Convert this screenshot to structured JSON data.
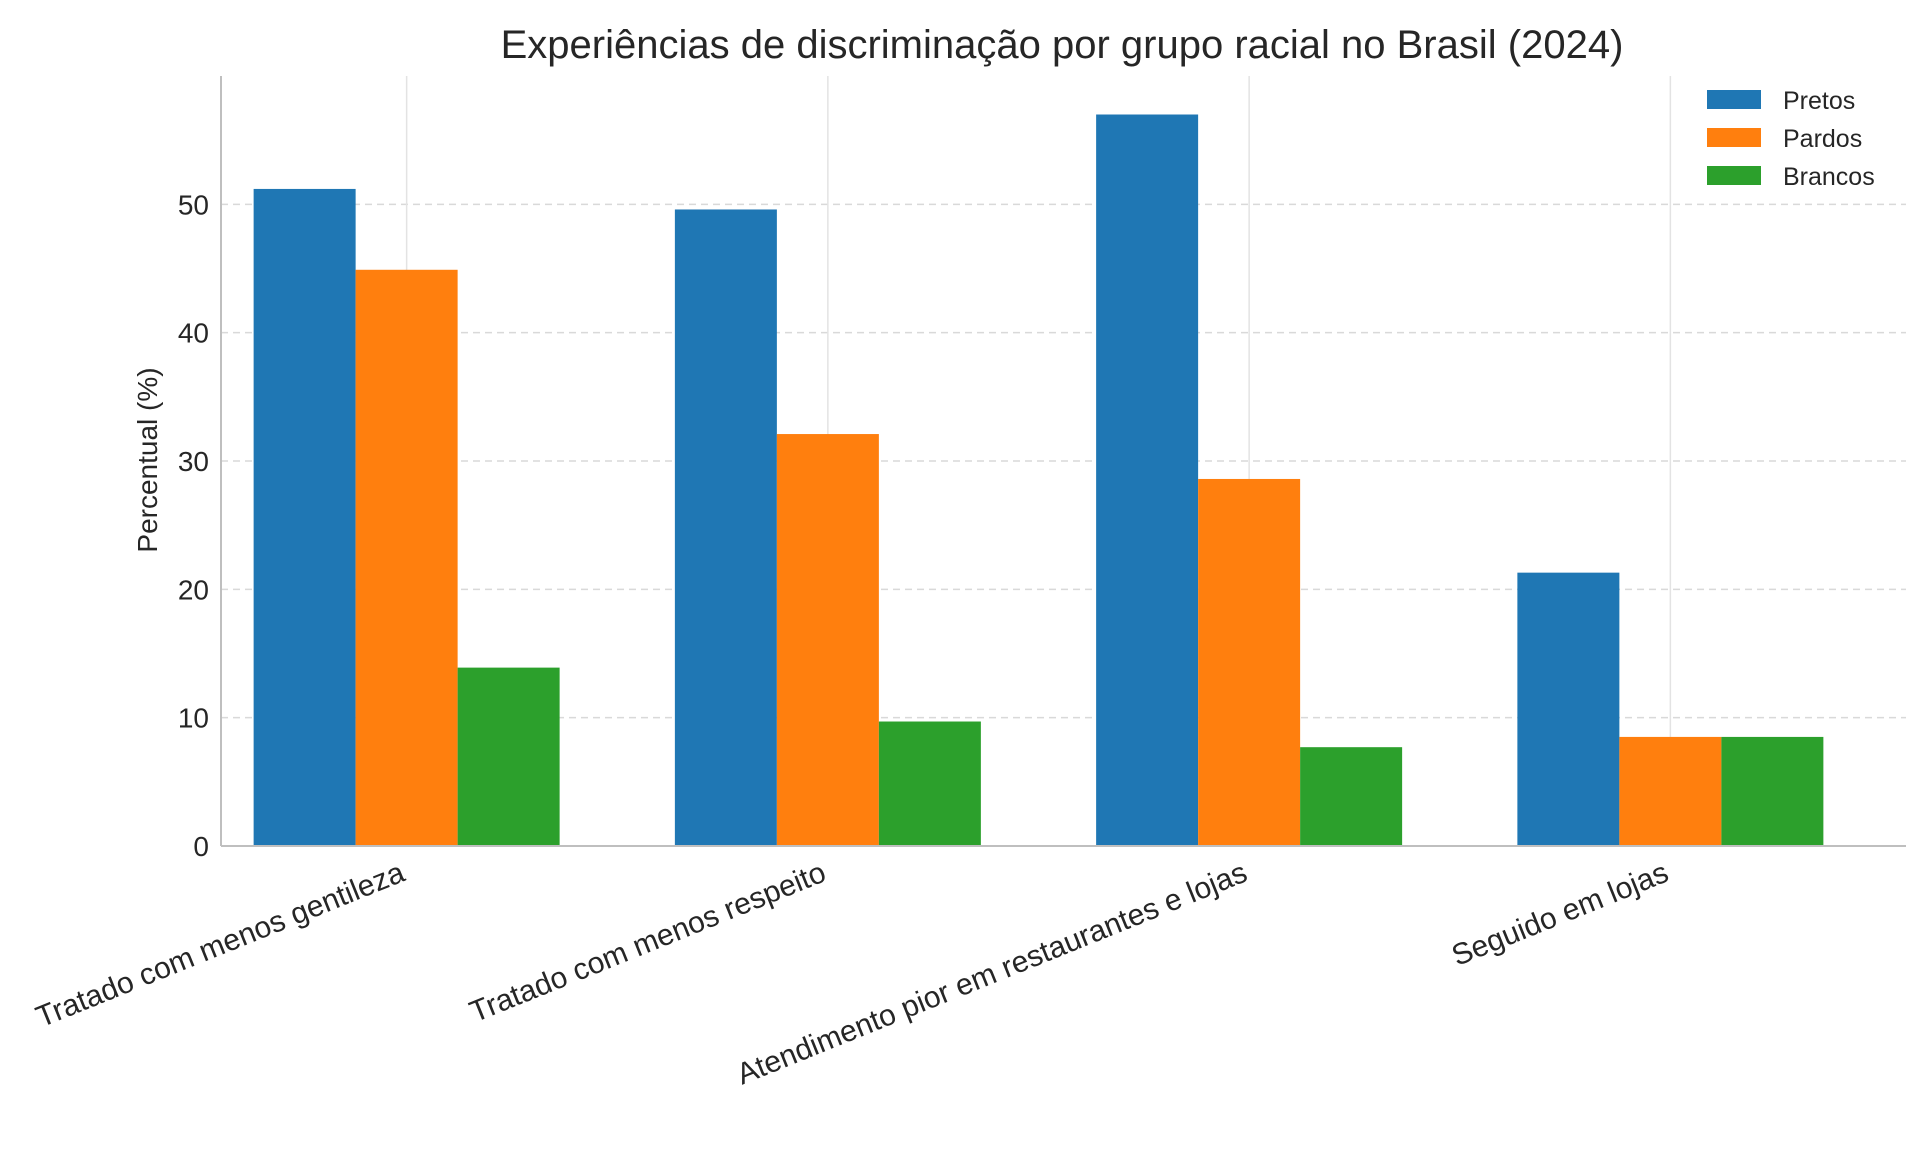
{
  "chart_data": {
    "type": "bar",
    "title": "Experiências de discriminação por grupo racial no Brasil (2024)",
    "xlabel": "",
    "ylabel": "Percentual (%)",
    "ylim": [
      0,
      60
    ],
    "yticks": [
      0,
      10,
      20,
      30,
      40,
      50
    ],
    "categories": [
      "Tratado com menos gentileza",
      "Tratado com menos respeito",
      "Atendimento pior em restaurantes e lojas",
      "Seguido em lojas"
    ],
    "series": [
      {
        "name": "Pretos",
        "color": "#1f77b4",
        "values": [
          51.2,
          49.6,
          57.0,
          21.3
        ]
      },
      {
        "name": "Pardos",
        "color": "#ff7f0e",
        "values": [
          44.9,
          32.1,
          28.6,
          8.5
        ]
      },
      {
        "name": "Brancos",
        "color": "#2ca02c",
        "values": [
          13.9,
          9.7,
          7.7,
          8.5
        ]
      }
    ],
    "grid": true,
    "legend_position": "top-right"
  }
}
